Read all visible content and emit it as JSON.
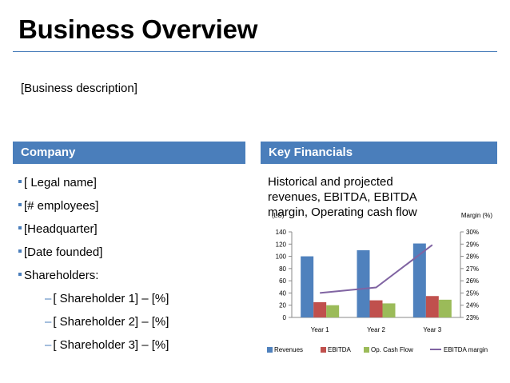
{
  "header": {
    "title": "Business Overview",
    "description": "[Business description]"
  },
  "company": {
    "heading": "Company",
    "items": [
      "[ Legal name]",
      "[# employees]",
      "[Headquarter]",
      "[Date founded]",
      "Shareholders:"
    ],
    "shareholders": [
      "[ Shareholder 1] – [%]",
      "[ Shareholder 2] – [%]",
      "[ Shareholder 3] – [%]"
    ]
  },
  "financials": {
    "heading": "Key Financials",
    "text": "Historical and projected revenues, EBITDA, EBITDA margin, Operating cash flow"
  },
  "colors": {
    "accent": "#4a7ebb",
    "revenues": "#4f81bd",
    "ebitda": "#c0504d",
    "cashflow": "#9bbb59",
    "margin": "#8064a2"
  },
  "chart_data": {
    "type": "bar",
    "categories": [
      "Year 1",
      "Year 2",
      "Year 3"
    ],
    "series": [
      {
        "name": "Revenues",
        "type": "bar",
        "axis": "left",
        "values": [
          100,
          110,
          121
        ]
      },
      {
        "name": "EBITDA",
        "type": "bar",
        "axis": "left",
        "values": [
          25,
          28,
          35
        ]
      },
      {
        "name": "Op. Cash Flow",
        "type": "bar",
        "axis": "left",
        "values": [
          20,
          23,
          29
        ]
      },
      {
        "name": "EBITDA margin",
        "type": "line",
        "axis": "right",
        "values": [
          0.25,
          0.2545,
          0.2893
        ]
      }
    ],
    "ylabel": "(LC)",
    "y2label": "Margin (%)",
    "ylim": [
      0,
      140
    ],
    "yticks": [
      0,
      20,
      40,
      60,
      80,
      100,
      120,
      140
    ],
    "y2lim": [
      0.23,
      0.3
    ],
    "y2ticks": [
      "23%",
      "24%",
      "25%",
      "26%",
      "27%",
      "28%",
      "29%",
      "30%"
    ],
    "grid": false,
    "legend": "bottom"
  }
}
